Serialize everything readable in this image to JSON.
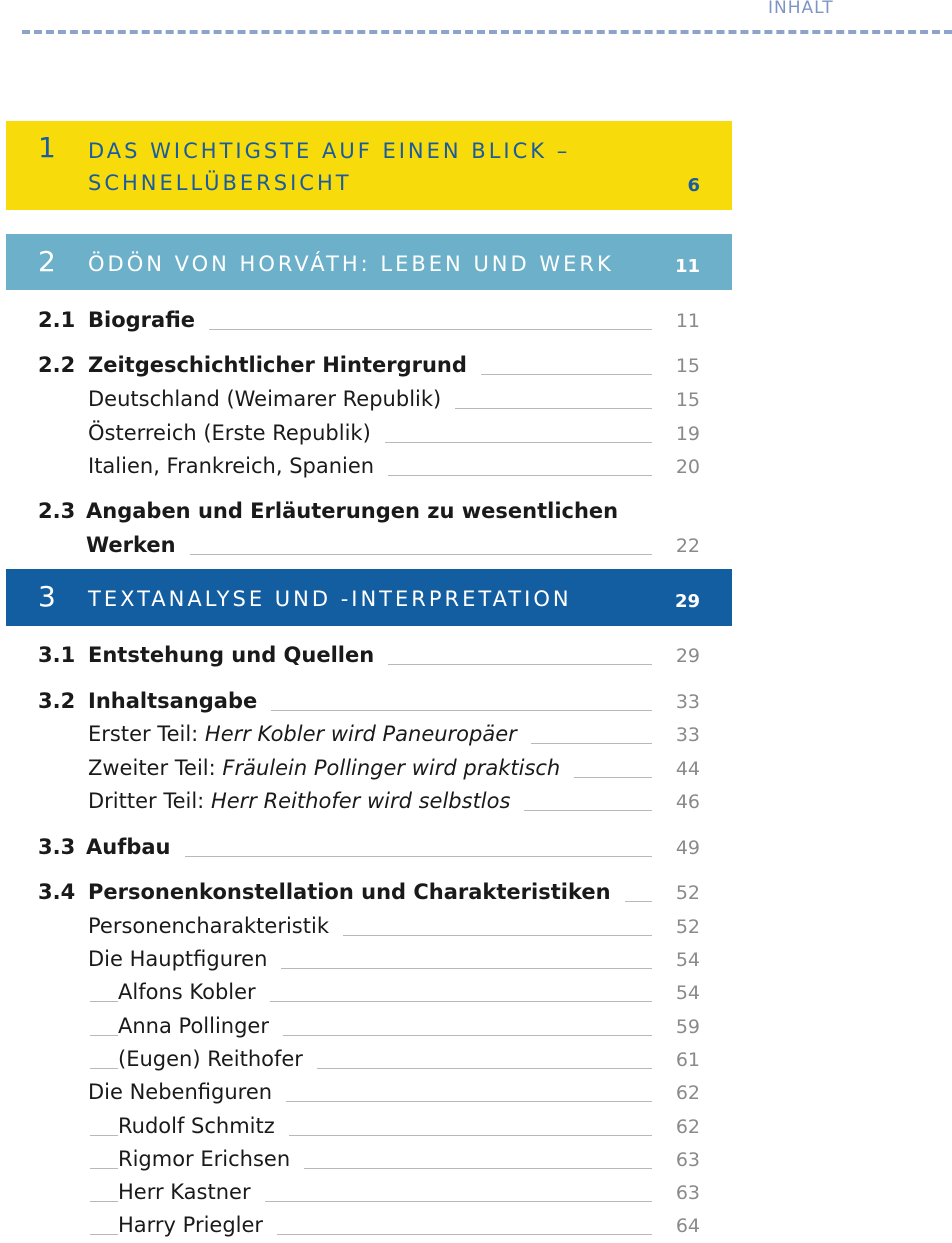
{
  "header": {
    "label": "INHALT"
  },
  "chapters": [
    {
      "number": "1",
      "title_line1": "DAS WICHTIGSTE AUF EINEN BLICK –",
      "title_line2": "SCHNELLÜBERSICHT",
      "page": "6"
    },
    {
      "number": "2",
      "title": "ÖDÖN VON HORVÁTH: LEBEN UND WERK",
      "page": "11"
    },
    {
      "number": "3",
      "title": "TEXTANALYSE UND -INTERPRETATION",
      "page": "29"
    }
  ],
  "entries": [
    {
      "section": "2.1",
      "label": "Biografie",
      "page": "11"
    },
    {
      "section": "2.2",
      "label": "Zeitgeschichtlicher Hintergrund",
      "page": "15"
    },
    {
      "label": "Deutschland (Weimarer Republik)",
      "page": "15"
    },
    {
      "label": "Österreich (Erste Republik)",
      "page": "19"
    },
    {
      "label": "Italien, Frankreich, Spanien",
      "page": "20"
    },
    {
      "section": "2.3",
      "label_line1": "Angaben und Erläuterungen zu wesentlichen",
      "label": "Werken",
      "page": "22"
    },
    {
      "section": "3.1",
      "label": "Entstehung und Quellen",
      "page": "29"
    },
    {
      "section": "3.2",
      "label": "Inhaltsangabe",
      "page": "33"
    },
    {
      "label_prefix": "Erster Teil: ",
      "label_italic": "Herr Kobler wird Paneuropäer",
      "page": "33"
    },
    {
      "label_prefix": "Zweiter Teil: ",
      "label_italic": "Fräulein Pollinger wird praktisch",
      "page": "44"
    },
    {
      "label_prefix": "Dritter Teil: ",
      "label_italic": "Herr Reithofer wird selbstlos",
      "page": "46"
    },
    {
      "section": "3.3",
      "label": "Aufbau",
      "page": "49"
    },
    {
      "section": "3.4",
      "label": "Personenkonstellation und Charakteristiken",
      "page": "52"
    },
    {
      "label": "Personencharakteristik",
      "page": "52"
    },
    {
      "label": "Die Hauptfiguren",
      "page": "54"
    },
    {
      "label": "Alfons Kobler",
      "page": "54"
    },
    {
      "label": "Anna Pollinger",
      "page": "59"
    },
    {
      "label": "(Eugen) Reithofer",
      "page": "61"
    },
    {
      "label": "Die Nebenfiguren",
      "page": "62"
    },
    {
      "label": "Rudolf Schmitz",
      "page": "62"
    },
    {
      "label": "Rigmor Erichsen",
      "page": "63"
    },
    {
      "label": "Herr Kastner",
      "page": "63"
    },
    {
      "label": "Harry Priegler",
      "page": "64"
    }
  ],
  "colors": {
    "chapter1": "#f7db0a",
    "chapter2": "#6cb0ca",
    "chapter3": "#135ea1",
    "chapter1_text": "#1a5c9e",
    "header_accent": "#8ea3cc"
  }
}
